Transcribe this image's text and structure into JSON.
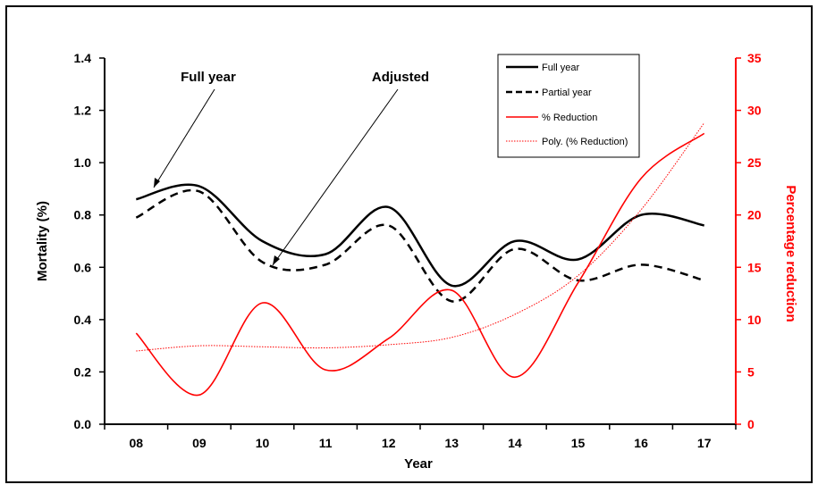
{
  "chart_data": {
    "type": "line",
    "xlabel": "Year",
    "ylabel_left": "Mortality (%)",
    "ylabel_right": "Percentage reduction",
    "categories": [
      "08",
      "09",
      "10",
      "11",
      "12",
      "13",
      "14",
      "15",
      "16",
      "17"
    ],
    "y_left_lim": [
      0,
      1.4
    ],
    "y_left_ticks": [
      "0.0",
      "0.2",
      "0.4",
      "0.6",
      "0.8",
      "1.0",
      "1.2",
      "1.4"
    ],
    "y_right_lim": [
      0,
      35
    ],
    "y_right_ticks": [
      "0",
      "5",
      "10",
      "15",
      "20",
      "25",
      "30",
      "35"
    ],
    "grid": false,
    "legend_position": "top-right",
    "series": [
      {
        "name": "Full year",
        "axis": "left",
        "color": "#000000",
        "style": "solid",
        "values": [
          0.86,
          0.91,
          0.7,
          0.65,
          0.83,
          0.53,
          0.7,
          0.63,
          0.8,
          0.76
        ]
      },
      {
        "name": "Partial year",
        "axis": "left",
        "color": "#000000",
        "style": "dashed",
        "values": [
          0.79,
          0.89,
          0.62,
          0.61,
          0.76,
          0.47,
          0.67,
          0.55,
          0.61,
          0.55
        ]
      },
      {
        "name": "% Reduction",
        "axis": "right",
        "color": "#ff0000",
        "style": "solid",
        "values": [
          8.7,
          2.8,
          11.6,
          5.2,
          8.2,
          12.8,
          4.5,
          13.5,
          23.5,
          27.8
        ]
      },
      {
        "name": "Poly. (% Reduction)",
        "axis": "right",
        "color": "#ff0000",
        "style": "dotted",
        "values": [
          7.0,
          7.5,
          7.4,
          7.3,
          7.6,
          8.3,
          10.5,
          14.2,
          20.5,
          28.8
        ]
      }
    ],
    "annotations": [
      {
        "text": "Full year",
        "points_to": {
          "x": "08",
          "series": "Full year"
        }
      },
      {
        "text": "Adjusted",
        "points_to": {
          "x": "10",
          "series": "Partial year"
        }
      }
    ]
  }
}
